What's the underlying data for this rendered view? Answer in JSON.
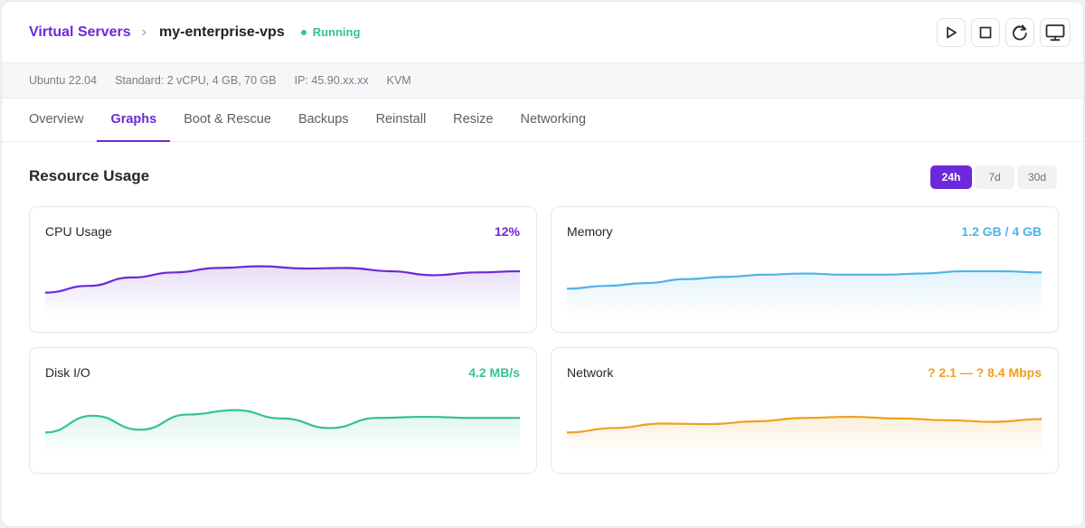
{
  "breadcrumb": {
    "root": "Virtual Servers",
    "separator": "›",
    "current": "my-enterprise-vps"
  },
  "status": {
    "label": "Running",
    "color": "#34c38f"
  },
  "actions": [
    {
      "name": "start",
      "icon": "play-icon"
    },
    {
      "name": "stop",
      "icon": "stop-icon"
    },
    {
      "name": "restart",
      "icon": "restart-icon"
    },
    {
      "name": "console",
      "icon": "monitor-icon"
    }
  ],
  "info": {
    "os": "Ubuntu 22.04",
    "plan": "Standard: 2 vCPU, 4 GB, 70 GB",
    "ip": "IP: 45.90.xx.xx",
    "virt": "KVM"
  },
  "tabs": [
    "Overview",
    "Graphs",
    "Boot & Rescue",
    "Backups",
    "Reinstall",
    "Resize",
    "Networking"
  ],
  "active_tab": "Graphs",
  "section": {
    "title": "Resource Usage"
  },
  "ranges": [
    "24h",
    "7d",
    "30d"
  ],
  "active_range": "24h",
  "colors": {
    "accent": "#6d28d9",
    "cpu": "#6d28d9",
    "memory": "#4fb3e8",
    "disk": "#34c38f",
    "network": "#f0a020"
  },
  "cards": {
    "cpu": {
      "title": "CPU Usage",
      "value": "12%",
      "series": [
        0.28,
        0.4,
        0.55,
        0.64,
        0.72,
        0.75,
        0.71,
        0.72,
        0.66,
        0.59,
        0.64,
        0.66
      ]
    },
    "memory": {
      "title": "Memory",
      "value": "1.2 GB / 4 GB",
      "series": [
        0.35,
        0.4,
        0.45,
        0.52,
        0.56,
        0.6,
        0.62,
        0.6,
        0.6,
        0.62,
        0.66,
        0.66,
        0.64
      ]
    },
    "disk": {
      "title": "Disk I/O",
      "value": "4.2 MB/s",
      "series": [
        0.3,
        0.6,
        0.35,
        0.62,
        0.7,
        0.55,
        0.38,
        0.56,
        0.58,
        0.56,
        0.56
      ]
    },
    "network": {
      "title": "Network",
      "value": "? 2.1 — ? 8.4 Mbps",
      "series": [
        0.3,
        0.38,
        0.46,
        0.45,
        0.5,
        0.56,
        0.58,
        0.55,
        0.52,
        0.49,
        0.54
      ]
    }
  }
}
